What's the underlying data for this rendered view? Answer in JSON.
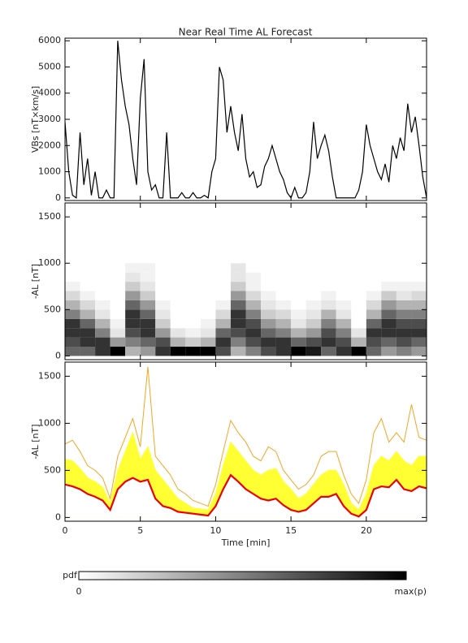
{
  "chart_data": [
    {
      "type": "line",
      "title": "Near Real Time AL Forecast",
      "ylabel": "VBs [nT×km/s]",
      "color": "#000000",
      "x": [
        0,
        0.25,
        0.5,
        0.75,
        1,
        1.25,
        1.5,
        1.75,
        2,
        2.25,
        2.5,
        2.75,
        3,
        3.25,
        3.5,
        3.75,
        4,
        4.25,
        4.5,
        4.75,
        5,
        5.25,
        5.5,
        5.75,
        6,
        6.25,
        6.5,
        6.75,
        7,
        7.25,
        7.5,
        7.75,
        8,
        8.25,
        8.5,
        8.75,
        9,
        9.25,
        9.5,
        9.75,
        10,
        10.25,
        10.5,
        10.75,
        11,
        11.25,
        11.5,
        11.75,
        12,
        12.25,
        12.5,
        12.75,
        13,
        13.25,
        13.5,
        13.75,
        14,
        14.25,
        14.5,
        14.75,
        15,
        15.25,
        15.5,
        15.75,
        16,
        16.25,
        16.5,
        16.75,
        17,
        17.25,
        17.5,
        17.75,
        18,
        18.25,
        18.5,
        18.75,
        19,
        19.25,
        19.5,
        19.75,
        20,
        20.25,
        20.5,
        20.75,
        21,
        21.25,
        21.5,
        21.75,
        22,
        22.25,
        22.5,
        22.75,
        23,
        23.25,
        23.5,
        23.75,
        24
      ],
      "values": [
        2900,
        1000,
        100,
        0,
        2500,
        500,
        1500,
        100,
        1000,
        0,
        0,
        300,
        0,
        0,
        6000,
        4500,
        3500,
        2800,
        1500,
        500,
        3800,
        5300,
        1000,
        300,
        500,
        0,
        0,
        2500,
        0,
        0,
        0,
        200,
        0,
        0,
        200,
        0,
        0,
        100,
        0,
        1000,
        1500,
        5000,
        4500,
        2500,
        3500,
        2500,
        1800,
        3200,
        1500,
        800,
        1000,
        400,
        500,
        1200,
        1500,
        2000,
        1500,
        1000,
        700,
        200,
        0,
        400,
        0,
        0,
        200,
        1000,
        2900,
        1500,
        2000,
        2400,
        1800,
        800,
        0,
        0,
        0,
        0,
        0,
        0,
        300,
        1000,
        2800,
        2000,
        1500,
        1000,
        700,
        1300,
        600,
        2000,
        1500,
        2300,
        1800,
        3600,
        2500,
        3100,
        2000,
        800,
        0
      ],
      "xlim": [
        0,
        24
      ],
      "xticks": [
        0,
        5,
        10,
        15,
        20
      ],
      "ylim": [
        -100,
        6100
      ],
      "yticks": [
        0,
        1000,
        2000,
        3000,
        4000,
        5000,
        6000
      ]
    },
    {
      "type": "heatmap",
      "ylabel": "-AL [nT]",
      "xbins": [
        0,
        1,
        2,
        3,
        4,
        5,
        6,
        7,
        8,
        9,
        10,
        11,
        12,
        13,
        14,
        15,
        16,
        17,
        18,
        19,
        20,
        21,
        22,
        23,
        24
      ],
      "ybins": [
        0,
        100,
        200,
        300,
        400,
        500,
        600,
        700,
        800,
        900,
        1000
      ],
      "z": [
        [
          0.6,
          0.7,
          0.8,
          0.8,
          0.5,
          0.3,
          0.15,
          0.05,
          0,
          0
        ],
        [
          0.6,
          0.8,
          0.8,
          0.6,
          0.3,
          0.15,
          0.05,
          0,
          0,
          0
        ],
        [
          0.8,
          0.8,
          0.5,
          0.3,
          0.1,
          0.05,
          0,
          0,
          0,
          0
        ],
        [
          1,
          0.4,
          0.1,
          0.05,
          0,
          0,
          0,
          0,
          0,
          0
        ],
        [
          0.3,
          0.5,
          0.7,
          0.8,
          0.8,
          0.6,
          0.4,
          0.2,
          0.1,
          0.05
        ],
        [
          0.4,
          0.6,
          0.8,
          0.8,
          0.6,
          0.4,
          0.2,
          0.1,
          0.05,
          0.05
        ],
        [
          0.8,
          0.7,
          0.4,
          0.2,
          0.1,
          0.05,
          0,
          0,
          0,
          0
        ],
        [
          1,
          0.3,
          0.1,
          0,
          0,
          0,
          0,
          0,
          0,
          0
        ],
        [
          1,
          0.2,
          0.05,
          0,
          0,
          0,
          0,
          0,
          0,
          0
        ],
        [
          1,
          0.3,
          0.1,
          0.05,
          0,
          0,
          0,
          0,
          0,
          0
        ],
        [
          0.7,
          0.8,
          0.6,
          0.3,
          0.15,
          0.05,
          0,
          0,
          0,
          0
        ],
        [
          0.3,
          0.5,
          0.7,
          0.8,
          0.8,
          0.6,
          0.4,
          0.2,
          0.1,
          0.1
        ],
        [
          0.5,
          0.7,
          0.8,
          0.7,
          0.5,
          0.3,
          0.15,
          0.05,
          0.05,
          0
        ],
        [
          0.7,
          0.8,
          0.6,
          0.4,
          0.2,
          0.1,
          0.05,
          0,
          0,
          0
        ],
        [
          0.8,
          0.8,
          0.5,
          0.3,
          0.15,
          0.05,
          0,
          0,
          0,
          0
        ],
        [
          1,
          0.6,
          0.3,
          0.1,
          0.05,
          0,
          0,
          0,
          0,
          0
        ],
        [
          0.9,
          0.7,
          0.4,
          0.2,
          0.1,
          0.05,
          0,
          0,
          0,
          0
        ],
        [
          0.6,
          0.8,
          0.7,
          0.5,
          0.3,
          0.1,
          0.05,
          0,
          0,
          0
        ],
        [
          0.8,
          0.7,
          0.5,
          0.3,
          0.1,
          0.05,
          0,
          0,
          0,
          0
        ],
        [
          1,
          0.3,
          0.1,
          0,
          0,
          0,
          0,
          0,
          0,
          0
        ],
        [
          0.6,
          0.7,
          0.8,
          0.6,
          0.3,
          0.15,
          0.05,
          0,
          0,
          0
        ],
        [
          0.4,
          0.6,
          0.8,
          0.8,
          0.6,
          0.4,
          0.2,
          0.05,
          0,
          0
        ],
        [
          0.5,
          0.7,
          0.8,
          0.7,
          0.5,
          0.3,
          0.1,
          0.05,
          0,
          0
        ],
        [
          0.4,
          0.6,
          0.8,
          0.7,
          0.5,
          0.3,
          0.15,
          0.05,
          0,
          0
        ]
      ],
      "xlim": [
        0,
        24
      ],
      "xticks": [
        0,
        5,
        10,
        15,
        20
      ],
      "ylim": [
        -40,
        1650
      ],
      "yticks": [
        0,
        500,
        1000,
        1500
      ]
    },
    {
      "type": "area",
      "ylabel": "-AL [nT]",
      "xlabel": "Time [min]",
      "x": [
        0,
        0.5,
        1,
        1.5,
        2,
        2.5,
        3,
        3.5,
        4,
        4.5,
        5,
        5.5,
        6,
        6.5,
        7,
        7.5,
        8,
        8.5,
        9,
        9.5,
        10,
        10.5,
        11,
        11.5,
        12,
        12.5,
        13,
        13.5,
        14,
        14.5,
        15,
        15.5,
        16,
        16.5,
        17,
        17.5,
        18,
        18.5,
        19,
        19.5,
        20,
        20.5,
        21,
        21.5,
        22,
        22.5,
        23,
        23.5,
        24
      ],
      "series": [
        {
          "color": "#f5a623",
          "values": [
            780,
            820,
            700,
            550,
            500,
            420,
            200,
            650,
            850,
            1050,
            750,
            1600,
            650,
            550,
            450,
            300,
            250,
            180,
            150,
            120,
            350,
            700,
            1030,
            900,
            800,
            650,
            600,
            750,
            700,
            500,
            400,
            300,
            350,
            450,
            650,
            700,
            700,
            450,
            250,
            150,
            400,
            900,
            1050,
            800,
            900,
            800,
            1200,
            850,
            820
          ]
        },
        {
          "color": "#ffff33",
          "fill": true,
          "values": [
            620,
            600,
            520,
            420,
            380,
            320,
            150,
            500,
            700,
            900,
            620,
            750,
            500,
            400,
            300,
            200,
            150,
            100,
            90,
            80,
            250,
            550,
            800,
            700,
            600,
            500,
            450,
            500,
            520,
            380,
            300,
            200,
            250,
            350,
            450,
            500,
            500,
            350,
            150,
            80,
            250,
            550,
            650,
            600,
            700,
            600,
            550,
            650,
            650
          ]
        },
        {
          "color": "#ee0000",
          "values": [
            350,
            330,
            300,
            250,
            220,
            180,
            80,
            300,
            380,
            420,
            380,
            400,
            200,
            120,
            100,
            60,
            50,
            40,
            30,
            20,
            120,
            300,
            450,
            380,
            300,
            250,
            200,
            180,
            200,
            130,
            80,
            60,
            80,
            150,
            220,
            220,
            250,
            120,
            40,
            10,
            80,
            300,
            330,
            320,
            400,
            300,
            280,
            330,
            310
          ]
        }
      ],
      "xlim": [
        0,
        24
      ],
      "xticks": [
        0,
        5,
        10,
        15,
        20
      ],
      "ylim": [
        -40,
        1650
      ],
      "yticks": [
        0,
        500,
        1000,
        1500
      ]
    }
  ],
  "colorbar": {
    "label": "pdf",
    "min_label": "0",
    "max_label": "max(p)"
  }
}
